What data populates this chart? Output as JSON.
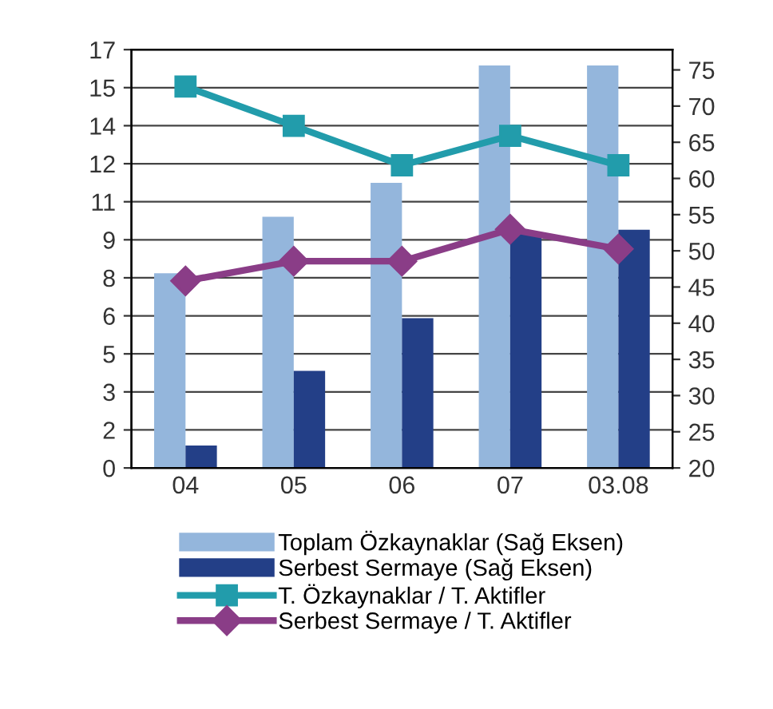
{
  "chart_data": {
    "type": "bar",
    "categories": [
      "04",
      "05",
      "06",
      "07",
      "03.08"
    ],
    "series": [
      {
        "name": "Toplam Özkaynaklar (Sağ Eksen)",
        "axis": "y2",
        "color": "#94b6dc",
        "values": [
          46.9,
          54.7,
          59.4,
          75.6,
          75.6
        ]
      },
      {
        "name": "Serbest Sermaye (Sağ Eksen)",
        "axis": "y2",
        "color": "#233f87",
        "values": [
          23.1,
          33.4,
          40.7,
          52.5,
          52.9
        ]
      },
      {
        "name": "T. Özkaynaklar / T. Aktifler",
        "type": "line",
        "color": "#229cab",
        "marker": "square",
        "values": [
          15.5,
          13.9,
          12.3,
          13.5,
          12.3
        ]
      },
      {
        "name": "Serbest Sermaye / T. Aktifler",
        "type": "line",
        "color": "#8a3d87",
        "marker": "diamond",
        "values": [
          7.6,
          8.4,
          8.4,
          9.7,
          8.9
        ]
      }
    ],
    "ylim": [
      0,
      17
    ],
    "yticks": [
      0,
      {
        "value": 1.545,
        "label": "2"
      },
      {
        "value": 3.091,
        "label": "3"
      },
      {
        "value": 4.636,
        "label": "5"
      },
      {
        "value": 6.182,
        "label": "6"
      },
      {
        "value": 7.727,
        "label": "8"
      },
      {
        "value": 9.273,
        "label": "9"
      },
      {
        "value": 10.818,
        "label": "11"
      },
      {
        "value": 12.364,
        "label": "12"
      },
      {
        "value": 13.909,
        "label": "14"
      },
      {
        "value": 15.455,
        "label": "15"
      },
      17
    ],
    "y2lim": [
      20,
      77.8
    ],
    "y2ticks": [
      20,
      25,
      30,
      35,
      40,
      45,
      50,
      55,
      60,
      65,
      70,
      75
    ],
    "grid": "y",
    "legend": "bottom",
    "line_style": "solid"
  }
}
